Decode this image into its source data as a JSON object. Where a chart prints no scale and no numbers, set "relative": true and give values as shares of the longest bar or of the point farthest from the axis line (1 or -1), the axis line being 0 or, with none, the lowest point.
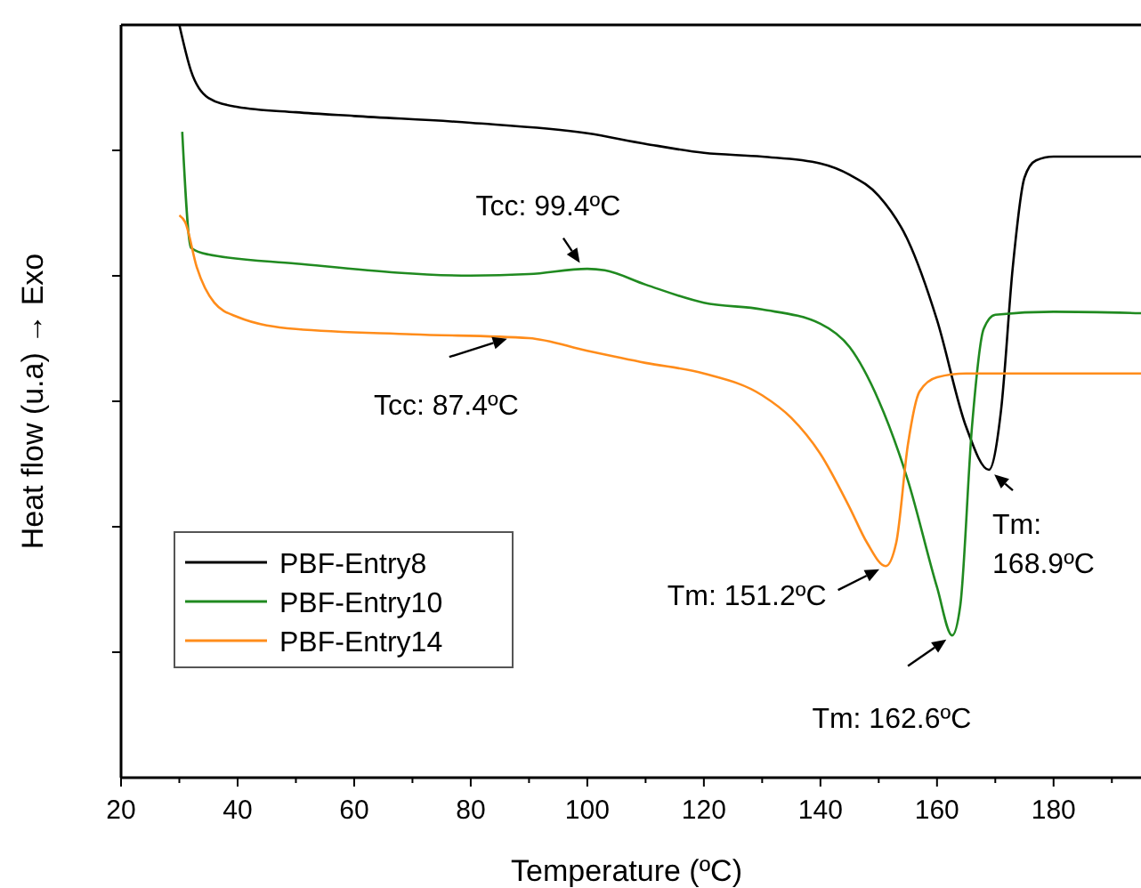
{
  "chart_data": {
    "type": "line",
    "relative": true,
    "xlabel": "Temperature (ºC)",
    "ylabel": "Heat flow (u.a) → Exo",
    "xlim": [
      20,
      195
    ],
    "xticks": [
      20,
      {
        "value": 30,
        "label": null
      },
      40,
      {
        "value": 50,
        "label": null
      },
      60,
      {
        "value": 70,
        "label": null
      },
      80,
      {
        "value": 90,
        "label": null
      },
      100,
      {
        "value": 110,
        "label": null
      },
      120,
      {
        "value": 130,
        "label": null
      },
      140,
      {
        "value": 150,
        "label": null
      },
      160,
      {
        "value": 170,
        "label": null
      },
      180,
      {
        "value": 190,
        "label": null
      }
    ],
    "legend": "bottom left",
    "grid": false,
    "marker": "none",
    "line_style": "solid",
    "series": [
      {
        "name": "PBF-Entry8",
        "color": "#000000",
        "x": [
          30,
          32,
          35,
          40,
          50,
          60,
          80,
          100,
          110,
          120,
          130,
          140,
          145,
          150,
          155,
          160,
          165,
          168.9,
          171,
          173,
          175,
          177,
          180,
          195
        ],
        "values": [
          1.0,
          0.939,
          0.903,
          0.891,
          0.884,
          0.879,
          0.87,
          0.856,
          0.842,
          0.83,
          0.825,
          0.816,
          0.801,
          0.773,
          0.714,
          0.608,
          0.466,
          0.409,
          0.489,
          0.678,
          0.797,
          0.82,
          0.825,
          0.825
        ]
      },
      {
        "name": "PBF-Entry10",
        "color": "#208a20",
        "x": [
          30.5,
          32,
          35,
          50,
          80,
          90,
          100,
          103,
          110,
          120,
          130,
          140,
          145,
          150,
          155,
          160,
          162.6,
          164,
          166,
          168,
          170,
          180,
          195
        ],
        "values": [
          0.858,
          0.704,
          0.695,
          0.683,
          0.667,
          0.669,
          0.676,
          0.674,
          0.655,
          0.631,
          0.622,
          0.603,
          0.572,
          0.501,
          0.395,
          0.253,
          0.189,
          0.229,
          0.466,
          0.596,
          0.615,
          0.619,
          0.617
        ]
      },
      {
        "name": "PBF-Entry14",
        "color": "#ff8c1a",
        "x": [
          30,
          31,
          33,
          36,
          40,
          50,
          70,
          90,
          100,
          110,
          120,
          130,
          135,
          140,
          145,
          148,
          151.2,
          153,
          155,
          157,
          160,
          165,
          180,
          195
        ],
        "values": [
          0.747,
          0.738,
          0.678,
          0.631,
          0.612,
          0.596,
          0.589,
          0.584,
          0.567,
          0.551,
          0.537,
          0.508,
          0.478,
          0.43,
          0.359,
          0.312,
          0.281,
          0.312,
          0.442,
          0.513,
          0.532,
          0.537,
          0.537,
          0.537
        ]
      }
    ],
    "annotations": [
      {
        "text": "Tcc: 99.4ºC",
        "x": 99.4,
        "y": 0.676
      },
      {
        "text": "Tcc: 87.4ºC",
        "x": 87.4,
        "y": 0.586
      },
      {
        "text": "Tm: 151.2ºC",
        "x": 151.2,
        "y": 0.281
      },
      {
        "text": "Tm: 162.6ºC",
        "x": 162.6,
        "y": 0.189
      },
      {
        "text": "Tm: 168.9ºC",
        "x": 168.9,
        "y": 0.409
      }
    ]
  }
}
